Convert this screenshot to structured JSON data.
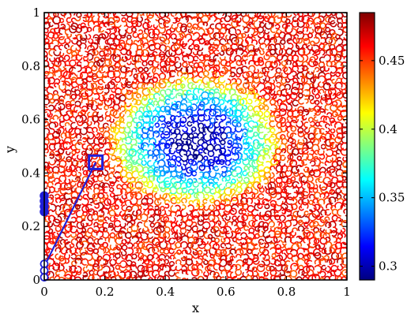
{
  "chart_data": {
    "type": "heatmap",
    "title": "",
    "xlabel": "x",
    "ylabel": "y",
    "xlim": [
      0,
      1
    ],
    "ylim": [
      0,
      1
    ],
    "x_ticks": [
      "0",
      "0.2",
      "0.4",
      "0.6",
      "0.8",
      "1"
    ],
    "y_ticks": [
      "0",
      "0.2",
      "0.4",
      "0.6",
      "0.8",
      "1"
    ],
    "field": {
      "description_of_value": "noisy contour field, minimum near center",
      "min_value": 0.29,
      "max_value": 0.485,
      "min_location": [
        0.5,
        0.52
      ],
      "edge_level": 0.46
    },
    "colorbar": {
      "colormap": "jet",
      "range": [
        0.29,
        0.485
      ],
      "tick_values": [
        0.3,
        0.35,
        0.4,
        0.45
      ],
      "tick_labels": [
        "0.3",
        "0.35",
        "0.4",
        "0.45"
      ]
    },
    "overlays": {
      "color": "#1f1fd8",
      "square_marker": {
        "x": 0.17,
        "y": 0.44
      },
      "line": {
        "from": [
          0.0,
          0.05
        ],
        "to": [
          0.17,
          0.44
        ]
      },
      "filled_points": [
        {
          "x": 0.0,
          "y": 0.315
        },
        {
          "x": 0.0,
          "y": 0.295
        },
        {
          "x": 0.0,
          "y": 0.275
        },
        {
          "x": 0.0,
          "y": 0.255
        }
      ],
      "open_circles": [
        {
          "x": 0.0,
          "y": 0.06
        },
        {
          "x": 0.0,
          "y": 0.035
        },
        {
          "x": 0.0,
          "y": 0.01
        }
      ]
    }
  }
}
